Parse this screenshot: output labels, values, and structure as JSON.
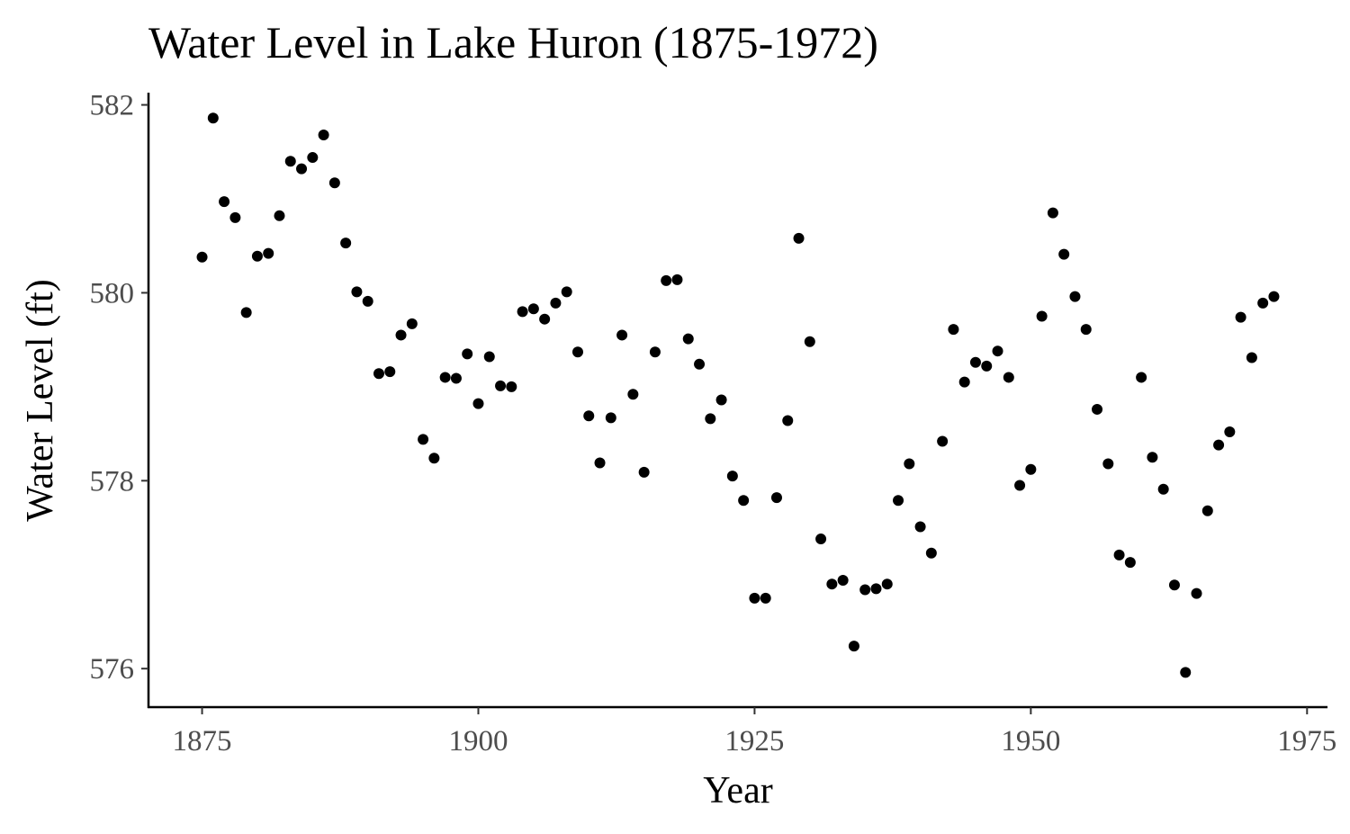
{
  "chart_data": {
    "type": "scatter",
    "title": "Water Level in Lake Huron (1875-1972)",
    "xlabel": "Year",
    "ylabel": "Water Level (ft)",
    "xlim": [
      1870.15,
      1976.85
    ],
    "ylim": [
      575.59,
      582.13
    ],
    "x_ticks": [
      1875,
      1900,
      1925,
      1950,
      1975
    ],
    "y_ticks": [
      576,
      578,
      580,
      582
    ],
    "grid": false,
    "legend": "none",
    "point_color": "#000000",
    "x": [
      1875,
      1876,
      1877,
      1878,
      1879,
      1880,
      1881,
      1882,
      1883,
      1884,
      1885,
      1886,
      1887,
      1888,
      1889,
      1890,
      1891,
      1892,
      1893,
      1894,
      1895,
      1896,
      1897,
      1898,
      1899,
      1900,
      1901,
      1902,
      1903,
      1904,
      1905,
      1906,
      1907,
      1908,
      1909,
      1910,
      1911,
      1912,
      1913,
      1914,
      1915,
      1916,
      1917,
      1918,
      1919,
      1920,
      1921,
      1922,
      1923,
      1924,
      1925,
      1926,
      1927,
      1928,
      1929,
      1930,
      1931,
      1932,
      1933,
      1934,
      1935,
      1936,
      1937,
      1938,
      1939,
      1940,
      1941,
      1942,
      1943,
      1944,
      1945,
      1946,
      1947,
      1948,
      1949,
      1950,
      1951,
      1952,
      1953,
      1954,
      1955,
      1956,
      1957,
      1958,
      1959,
      1960,
      1961,
      1962,
      1963,
      1964,
      1965,
      1966,
      1967,
      1968,
      1969,
      1970,
      1971,
      1972
    ],
    "y": [
      580.38,
      581.86,
      580.97,
      580.8,
      579.79,
      580.39,
      580.42,
      580.82,
      581.4,
      581.32,
      581.44,
      581.68,
      581.17,
      580.53,
      580.01,
      579.91,
      579.14,
      579.16,
      579.55,
      579.67,
      578.44,
      578.24,
      579.1,
      579.09,
      579.35,
      578.82,
      579.32,
      579.01,
      579.0,
      579.8,
      579.83,
      579.72,
      579.89,
      580.01,
      579.37,
      578.69,
      578.19,
      578.67,
      579.55,
      578.92,
      578.09,
      579.37,
      580.13,
      580.14,
      579.51,
      579.24,
      578.66,
      578.86,
      578.05,
      577.79,
      576.75,
      576.75,
      577.82,
      578.64,
      580.58,
      579.48,
      577.38,
      576.9,
      576.94,
      576.24,
      576.84,
      576.85,
      576.9,
      577.79,
      578.18,
      577.51,
      577.23,
      578.42,
      579.61,
      579.05,
      579.26,
      579.22,
      579.38,
      579.1,
      577.95,
      578.12,
      579.75,
      580.85,
      580.41,
      579.96,
      579.61,
      578.76,
      578.18,
      577.21,
      577.13,
      579.1,
      578.25,
      577.91,
      576.89,
      575.96,
      576.8,
      577.68,
      578.38,
      578.52,
      579.74,
      579.31,
      579.89,
      579.96
    ]
  }
}
